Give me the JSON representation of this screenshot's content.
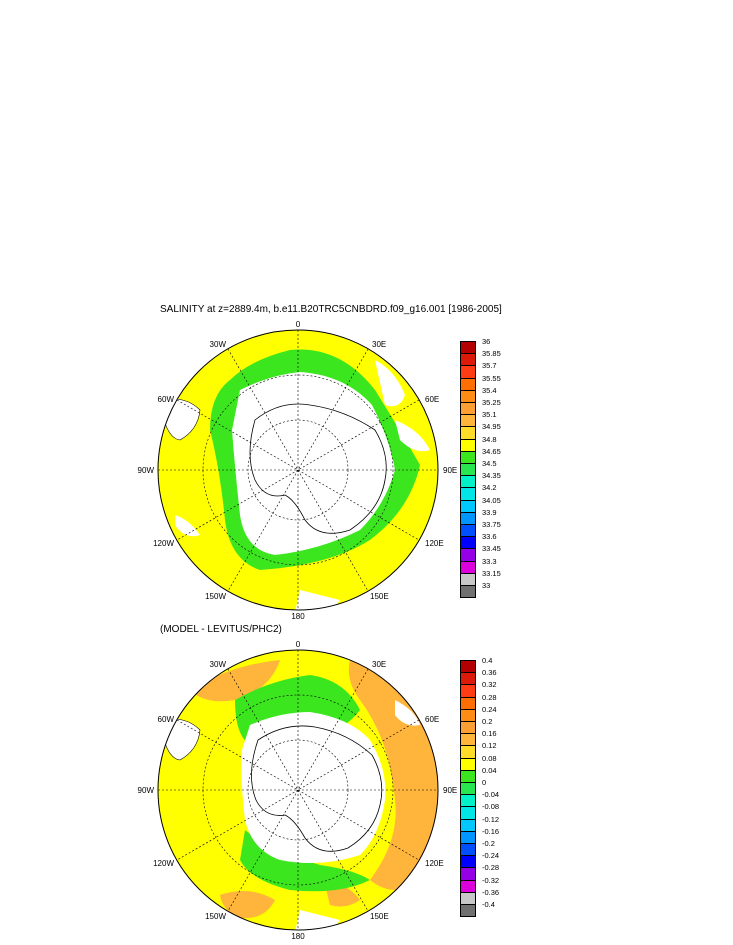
{
  "titles": {
    "main": "SALINITY at z=2889.4m, b.e11.B20TRC5CNBDRD.f09_g16.001 [1986-2005]",
    "sub": "(MODEL - LEVITUS/PHC2)"
  },
  "map_labels": {
    "lon0": "0",
    "lon30e": "30E",
    "lon60e": "60E",
    "lon90e": "90E",
    "lon120e": "120E",
    "lon150e": "150E",
    "lon180": "180",
    "lon150w": "150W",
    "lon120w": "120W",
    "lon90w": "90W",
    "lon60w": "60W",
    "lon30w": "30W"
  },
  "colorbar_top": {
    "labels": [
      "36",
      "35.85",
      "35.7",
      "35.55",
      "35.4",
      "35.25",
      "35.1",
      "34.95",
      "34.8",
      "34.65",
      "34.5",
      "34.35",
      "34.2",
      "34.05",
      "33.9",
      "33.75",
      "33.6",
      "33.45",
      "33.3",
      "33.15",
      "33"
    ],
    "colors": [
      "#b40000",
      "#dc1a0a",
      "#ff3c14",
      "#ff6e00",
      "#ff8c14",
      "#ff9e32",
      "#ffb43c",
      "#ffdc28",
      "#ffff00",
      "#3ce61e",
      "#28e650",
      "#00f0c8",
      "#00e6e6",
      "#00c8ff",
      "#0096ff",
      "#0050ff",
      "#0000ff",
      "#9600e6",
      "#dc00dc",
      "#c8c8c8",
      "#707070"
    ]
  },
  "colorbar_bottom": {
    "labels": [
      "0.4",
      "0.36",
      "0.32",
      "0.28",
      "0.24",
      "0.2",
      "0.16",
      "0.12",
      "0.08",
      "0.04",
      "0",
      "-0.04",
      "-0.08",
      "-0.12",
      "-0.16",
      "-0.2",
      "-0.24",
      "-0.28",
      "-0.32",
      "-0.36",
      "-0.4"
    ],
    "colors": [
      "#b40000",
      "#dc1a0a",
      "#ff3c14",
      "#ff6e00",
      "#ff8c14",
      "#ff9e32",
      "#ffb43c",
      "#ffdc28",
      "#ffff00",
      "#3ce61e",
      "#28e650",
      "#00f0c8",
      "#00e6e6",
      "#00c8ff",
      "#0096ff",
      "#0050ff",
      "#0000ff",
      "#9600e6",
      "#dc00dc",
      "#c8c8c8",
      "#707070"
    ]
  },
  "colors": {
    "land": "#ffffff",
    "yellow": "#ffff00",
    "green": "#3ce61e",
    "orange": "#ffb43c"
  }
}
